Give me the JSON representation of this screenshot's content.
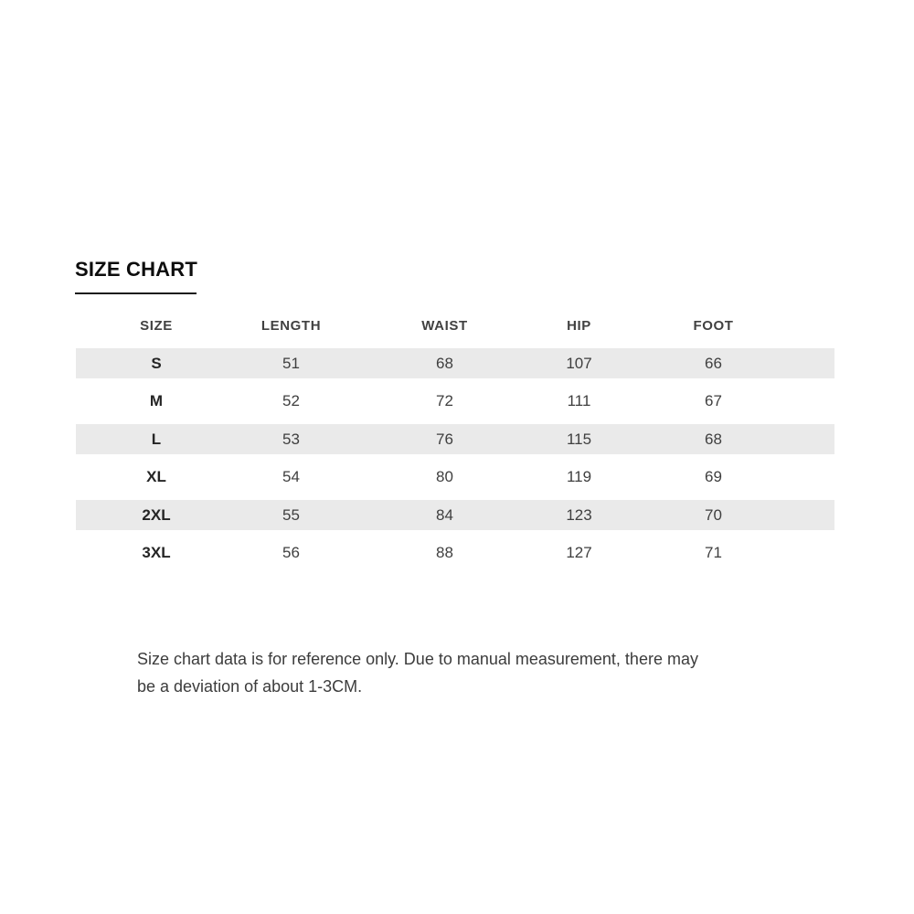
{
  "title": {
    "text": "SIZE CHART"
  },
  "colors": {
    "background": "#ffffff",
    "stripe": "#eaeaea",
    "title_text": "#0d0d0d",
    "header_text": "#414141",
    "cell_text": "#3f3f3f"
  },
  "table": {
    "columns": [
      "SIZE",
      "LENGTH",
      "WAIST",
      "HIP",
      "FOOT"
    ],
    "rows": [
      {
        "size": "S",
        "length": "51",
        "waist": "68",
        "hip": "107",
        "foot": "66"
      },
      {
        "size": "M",
        "length": "52",
        "waist": "72",
        "hip": "111",
        "foot": "67"
      },
      {
        "size": "L",
        "length": "53",
        "waist": "76",
        "hip": "115",
        "foot": "68"
      },
      {
        "size": "XL",
        "length": "54",
        "waist": "80",
        "hip": "119",
        "foot": "69"
      },
      {
        "size": "2XL",
        "length": "55",
        "waist": "84",
        "hip": "123",
        "foot": "70"
      },
      {
        "size": "3XL",
        "length": "56",
        "waist": "88",
        "hip": "127",
        "foot": "71"
      }
    ]
  },
  "disclaimer": {
    "lines": [
      "Size chart data is for reference only. Due to manual measurement, there may",
      "be a deviation of about 1-3CM."
    ]
  },
  "chart_data": {
    "type": "table",
    "title": "SIZE CHART",
    "columns": [
      "SIZE",
      "LENGTH",
      "WAIST",
      "HIP",
      "FOOT"
    ],
    "rows": [
      [
        "S",
        51,
        68,
        107,
        66
      ],
      [
        "M",
        52,
        72,
        111,
        67
      ],
      [
        "L",
        53,
        76,
        115,
        68
      ],
      [
        "XL",
        54,
        80,
        119,
        69
      ],
      [
        "2XL",
        55,
        84,
        123,
        70
      ],
      [
        "3XL",
        56,
        88,
        127,
        71
      ]
    ],
    "units": "CM",
    "note": "Size chart data is for reference only. Due to manual measurement, there may be a deviation of about 1-3CM.",
    "layout": {
      "striped_rows": [
        0,
        2,
        4
      ],
      "stripe_color": "#eaeaea"
    }
  }
}
